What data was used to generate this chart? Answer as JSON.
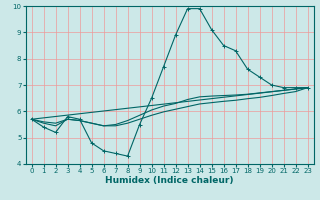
{
  "xlabel": "Humidex (Indice chaleur)",
  "ylabel": "",
  "xlim": [
    -0.5,
    23.5
  ],
  "ylim": [
    4,
    10
  ],
  "yticks": [
    4,
    5,
    6,
    7,
    8,
    9,
    10
  ],
  "xticks": [
    0,
    1,
    2,
    3,
    4,
    5,
    6,
    7,
    8,
    9,
    10,
    11,
    12,
    13,
    14,
    15,
    16,
    17,
    18,
    19,
    20,
    21,
    22,
    23
  ],
  "background_color": "#cce8e8",
  "grid_color": "#ee9999",
  "line_color": "#006666",
  "curve1_x": [
    0,
    1,
    2,
    3,
    4,
    5,
    6,
    7,
    8,
    9,
    10,
    11,
    12,
    13,
    14,
    15,
    16,
    17,
    18,
    19,
    20,
    21,
    22,
    23
  ],
  "curve1_y": [
    5.7,
    5.4,
    5.2,
    5.8,
    5.7,
    4.8,
    4.5,
    4.4,
    4.3,
    5.5,
    6.5,
    7.7,
    8.9,
    9.9,
    9.9,
    9.1,
    8.5,
    8.3,
    7.6,
    7.3,
    7.0,
    6.9,
    6.9,
    6.9
  ],
  "curve2_x": [
    0,
    1,
    2,
    3,
    4,
    5,
    6,
    7,
    8,
    9,
    10,
    11,
    12,
    13,
    14,
    15,
    16,
    17,
    18,
    19,
    20,
    21,
    22,
    23
  ],
  "curve2_y": [
    5.7,
    5.55,
    5.45,
    5.7,
    5.65,
    5.55,
    5.45,
    5.5,
    5.65,
    5.85,
    6.05,
    6.2,
    6.3,
    6.45,
    6.55,
    6.58,
    6.6,
    6.62,
    6.65,
    6.7,
    6.75,
    6.8,
    6.85,
    6.9
  ],
  "curve3_x": [
    0,
    1,
    2,
    3,
    4,
    5,
    6,
    7,
    8,
    9,
    10,
    11,
    12,
    13,
    14,
    15,
    16,
    17,
    18,
    19,
    20,
    21,
    22,
    23
  ],
  "curve3_y": [
    5.7,
    5.6,
    5.55,
    5.7,
    5.65,
    5.55,
    5.45,
    5.45,
    5.55,
    5.7,
    5.85,
    5.98,
    6.08,
    6.18,
    6.28,
    6.33,
    6.38,
    6.42,
    6.48,
    6.53,
    6.6,
    6.68,
    6.75,
    6.9
  ],
  "curve4_x": [
    0,
    23
  ],
  "curve4_y": [
    5.7,
    6.9
  ]
}
